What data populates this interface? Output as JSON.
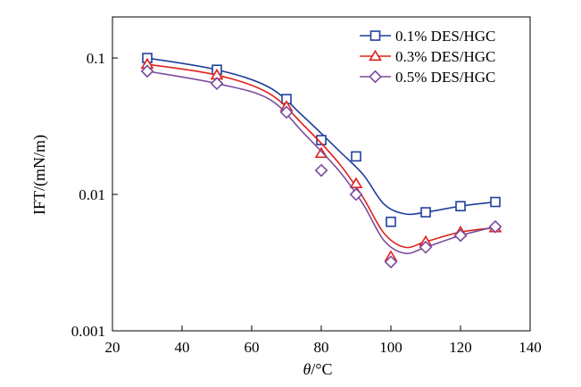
{
  "chart_data": {
    "type": "line",
    "x": [
      30,
      50,
      70,
      80,
      90,
      100,
      110,
      120,
      130
    ],
    "series": [
      {
        "name": "0.1% DES/HGC",
        "color": "#1f3f9a",
        "marker": "square",
        "points": [
          [
            30,
            0.1
          ],
          [
            50,
            0.082
          ],
          [
            70,
            0.05
          ],
          [
            80,
            0.025
          ],
          [
            90,
            0.019
          ],
          [
            100,
            0.0063
          ],
          [
            110,
            0.0074
          ],
          [
            120,
            0.0082
          ],
          [
            130,
            0.0088
          ]
        ],
        "curve": [
          [
            30,
            0.1
          ],
          [
            50,
            0.082
          ],
          [
            65,
            0.061
          ],
          [
            75,
            0.037
          ],
          [
            85,
            0.021
          ],
          [
            92,
            0.014
          ],
          [
            98,
            0.0085
          ],
          [
            104,
            0.0072
          ],
          [
            110,
            0.0074
          ],
          [
            120,
            0.0082
          ],
          [
            130,
            0.0088
          ]
        ]
      },
      {
        "name": "0.3% DES/HGC",
        "color": "#e0201c",
        "marker": "triangle",
        "points": [
          [
            30,
            0.09
          ],
          [
            50,
            0.075
          ],
          [
            70,
            0.044
          ],
          [
            80,
            0.02
          ],
          [
            90,
            0.012
          ],
          [
            100,
            0.0035
          ],
          [
            110,
            0.0045
          ],
          [
            120,
            0.0053
          ],
          [
            130,
            0.0057
          ]
        ],
        "curve": [
          [
            30,
            0.09
          ],
          [
            50,
            0.075
          ],
          [
            65,
            0.055
          ],
          [
            75,
            0.032
          ],
          [
            85,
            0.017
          ],
          [
            92,
            0.0095
          ],
          [
            98,
            0.0052
          ],
          [
            104,
            0.0041
          ],
          [
            110,
            0.0045
          ],
          [
            120,
            0.0053
          ],
          [
            130,
            0.0057
          ]
        ]
      },
      {
        "name": "0.5% DES/HGC",
        "color": "#7b4c9c",
        "marker": "diamond",
        "points": [
          [
            30,
            0.08
          ],
          [
            50,
            0.065
          ],
          [
            70,
            0.04
          ],
          [
            80,
            0.015
          ],
          [
            90,
            0.01
          ],
          [
            100,
            0.0032
          ],
          [
            110,
            0.0041
          ],
          [
            120,
            0.005
          ],
          [
            130,
            0.0058
          ]
        ],
        "curve": [
          [
            30,
            0.08
          ],
          [
            50,
            0.065
          ],
          [
            65,
            0.05
          ],
          [
            75,
            0.028
          ],
          [
            85,
            0.015
          ],
          [
            92,
            0.0085
          ],
          [
            98,
            0.0046
          ],
          [
            104,
            0.0037
          ],
          [
            110,
            0.0041
          ],
          [
            120,
            0.005
          ],
          [
            130,
            0.0058
          ]
        ]
      }
    ],
    "xlabel": "θ/°C",
    "ylabel": "IFT/(mN/m)",
    "xlim": [
      20,
      140
    ],
    "ylim": [
      0.001,
      0.2
    ],
    "yscale": "log",
    "xticks": [
      20,
      40,
      60,
      80,
      100,
      120,
      140
    ],
    "xtick_labels": [
      "20",
      "40",
      "60",
      "80",
      "100",
      "120",
      "140"
    ],
    "yticks": [
      0.001,
      0.01,
      0.1
    ],
    "ytick_labels": [
      "0.001",
      "0.01",
      "0.1"
    ],
    "grid": false,
    "legend_position": "top-right"
  }
}
